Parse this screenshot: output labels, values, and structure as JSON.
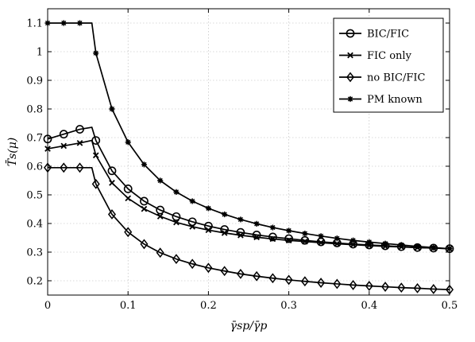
{
  "chart_data": {
    "type": "line",
    "title": "",
    "xlabel": "γ̄sp/γ̄p",
    "ylabel": "T̄s(μ)",
    "xlim": [
      0,
      0.5
    ],
    "ylim": [
      0.15,
      1.15
    ],
    "xticks": [
      "0",
      "0.1",
      "0.2",
      "0.3",
      "0.4",
      "0.5"
    ],
    "yticks": [
      "0.2",
      "0.3",
      "0.4",
      "0.5",
      "0.6",
      "0.7",
      "0.8",
      "0.9",
      "1",
      "1.1"
    ],
    "grid": true,
    "legend_position": "top-right",
    "series": [
      {
        "name": "BIC/FIC",
        "marker": "circle",
        "x": [
          0,
          0.02,
          0.04,
          0.06,
          0.08,
          0.1,
          0.12,
          0.14,
          0.16,
          0.18,
          0.2,
          0.22,
          0.24,
          0.26,
          0.28,
          0.3,
          0.32,
          0.34,
          0.36,
          0.38,
          0.4,
          0.42,
          0.44,
          0.46,
          0.48,
          0.5
        ],
        "y": [
          0.695,
          0.712,
          0.729,
          0.69,
          0.584,
          0.521,
          0.478,
          0.447,
          0.424,
          0.406,
          0.391,
          0.379,
          0.369,
          0.36,
          0.353,
          0.347,
          0.341,
          0.336,
          0.332,
          0.328,
          0.325,
          0.322,
          0.319,
          0.316,
          0.314,
          0.312
        ],
        "curve": [
          [
            0,
            0.695
          ],
          [
            0.02,
            0.712
          ],
          [
            0.04,
            0.729
          ],
          [
            0.055,
            0.736
          ],
          [
            0.06,
            0.69
          ],
          [
            0.08,
            0.584
          ],
          [
            0.1,
            0.521
          ],
          [
            0.12,
            0.478
          ],
          [
            0.14,
            0.447
          ],
          [
            0.16,
            0.424
          ],
          [
            0.18,
            0.406
          ],
          [
            0.2,
            0.391
          ],
          [
            0.22,
            0.379
          ],
          [
            0.24,
            0.369
          ],
          [
            0.26,
            0.36
          ],
          [
            0.28,
            0.353
          ],
          [
            0.3,
            0.347
          ],
          [
            0.32,
            0.341
          ],
          [
            0.34,
            0.336
          ],
          [
            0.36,
            0.332
          ],
          [
            0.38,
            0.328
          ],
          [
            0.4,
            0.325
          ],
          [
            0.42,
            0.322
          ],
          [
            0.44,
            0.319
          ],
          [
            0.46,
            0.316
          ],
          [
            0.48,
            0.314
          ],
          [
            0.5,
            0.312
          ]
        ]
      },
      {
        "name": "FIC only",
        "marker": "x",
        "x": [
          0,
          0.02,
          0.04,
          0.06,
          0.08,
          0.1,
          0.12,
          0.14,
          0.16,
          0.18,
          0.2,
          0.22,
          0.24,
          0.26,
          0.28,
          0.3,
          0.32,
          0.34,
          0.36,
          0.38,
          0.4,
          0.42,
          0.44,
          0.46,
          0.48,
          0.5
        ],
        "y": [
          0.661,
          0.671,
          0.681,
          0.638,
          0.542,
          0.488,
          0.451,
          0.425,
          0.404,
          0.389,
          0.377,
          0.367,
          0.359,
          0.352,
          0.346,
          0.341,
          0.337,
          0.333,
          0.329,
          0.326,
          0.323,
          0.32,
          0.318,
          0.316,
          0.314,
          0.312
        ],
        "curve": [
          [
            0,
            0.661
          ],
          [
            0.02,
            0.671
          ],
          [
            0.04,
            0.681
          ],
          [
            0.055,
            0.69
          ],
          [
            0.06,
            0.638
          ],
          [
            0.08,
            0.542
          ],
          [
            0.1,
            0.488
          ],
          [
            0.12,
            0.451
          ],
          [
            0.14,
            0.425
          ],
          [
            0.16,
            0.404
          ],
          [
            0.18,
            0.389
          ],
          [
            0.2,
            0.377
          ],
          [
            0.22,
            0.367
          ],
          [
            0.24,
            0.359
          ],
          [
            0.26,
            0.352
          ],
          [
            0.28,
            0.346
          ],
          [
            0.3,
            0.341
          ],
          [
            0.32,
            0.337
          ],
          [
            0.34,
            0.333
          ],
          [
            0.36,
            0.329
          ],
          [
            0.38,
            0.326
          ],
          [
            0.4,
            0.323
          ],
          [
            0.42,
            0.32
          ],
          [
            0.44,
            0.318
          ],
          [
            0.46,
            0.316
          ],
          [
            0.48,
            0.314
          ],
          [
            0.5,
            0.312
          ]
        ]
      },
      {
        "name": "no BIC/FIC",
        "marker": "diamond",
        "x": [
          0,
          0.02,
          0.04,
          0.06,
          0.08,
          0.1,
          0.12,
          0.14,
          0.16,
          0.18,
          0.2,
          0.22,
          0.24,
          0.26,
          0.28,
          0.3,
          0.32,
          0.34,
          0.36,
          0.38,
          0.4,
          0.42,
          0.44,
          0.46,
          0.48,
          0.5
        ],
        "y": [
          0.595,
          0.595,
          0.595,
          0.538,
          0.432,
          0.37,
          0.328,
          0.298,
          0.276,
          0.259,
          0.245,
          0.234,
          0.224,
          0.216,
          0.209,
          0.203,
          0.198,
          0.193,
          0.189,
          0.185,
          0.182,
          0.179,
          0.176,
          0.174,
          0.171,
          0.169
        ],
        "curve": [
          [
            0,
            0.595
          ],
          [
            0.02,
            0.595
          ],
          [
            0.04,
            0.595
          ],
          [
            0.055,
            0.595
          ],
          [
            0.06,
            0.538
          ],
          [
            0.08,
            0.432
          ],
          [
            0.1,
            0.37
          ],
          [
            0.12,
            0.328
          ],
          [
            0.14,
            0.298
          ],
          [
            0.16,
            0.276
          ],
          [
            0.18,
            0.259
          ],
          [
            0.2,
            0.245
          ],
          [
            0.22,
            0.234
          ],
          [
            0.24,
            0.224
          ],
          [
            0.26,
            0.216
          ],
          [
            0.28,
            0.209
          ],
          [
            0.3,
            0.203
          ],
          [
            0.32,
            0.198
          ],
          [
            0.34,
            0.193
          ],
          [
            0.36,
            0.189
          ],
          [
            0.38,
            0.185
          ],
          [
            0.4,
            0.182
          ],
          [
            0.42,
            0.179
          ],
          [
            0.44,
            0.176
          ],
          [
            0.46,
            0.174
          ],
          [
            0.48,
            0.171
          ],
          [
            0.5,
            0.169
          ]
        ]
      },
      {
        "name": "PM known",
        "marker": "star",
        "x": [
          0,
          0.02,
          0.04,
          0.06,
          0.08,
          0.1,
          0.12,
          0.14,
          0.16,
          0.18,
          0.2,
          0.22,
          0.24,
          0.26,
          0.28,
          0.3,
          0.32,
          0.34,
          0.36,
          0.38,
          0.4,
          0.42,
          0.44,
          0.46,
          0.48,
          0.5
        ],
        "y": [
          1.1,
          1.1,
          1.1,
          0.995,
          0.8,
          0.684,
          0.606,
          0.55,
          0.51,
          0.478,
          0.453,
          0.432,
          0.414,
          0.399,
          0.386,
          0.375,
          0.365,
          0.356,
          0.348,
          0.341,
          0.335,
          0.33,
          0.325,
          0.32,
          0.316,
          0.312
        ],
        "curve": [
          [
            0,
            1.1
          ],
          [
            0.02,
            1.1
          ],
          [
            0.04,
            1.1
          ],
          [
            0.055,
            1.1
          ],
          [
            0.06,
            0.995
          ],
          [
            0.08,
            0.8
          ],
          [
            0.1,
            0.684
          ],
          [
            0.12,
            0.606
          ],
          [
            0.14,
            0.55
          ],
          [
            0.16,
            0.51
          ],
          [
            0.18,
            0.478
          ],
          [
            0.2,
            0.453
          ],
          [
            0.22,
            0.432
          ],
          [
            0.24,
            0.414
          ],
          [
            0.26,
            0.399
          ],
          [
            0.28,
            0.386
          ],
          [
            0.3,
            0.375
          ],
          [
            0.32,
            0.365
          ],
          [
            0.34,
            0.356
          ],
          [
            0.36,
            0.348
          ],
          [
            0.38,
            0.341
          ],
          [
            0.4,
            0.335
          ],
          [
            0.42,
            0.33
          ],
          [
            0.44,
            0.325
          ],
          [
            0.46,
            0.32
          ],
          [
            0.48,
            0.316
          ],
          [
            0.5,
            0.312
          ]
        ]
      }
    ]
  }
}
